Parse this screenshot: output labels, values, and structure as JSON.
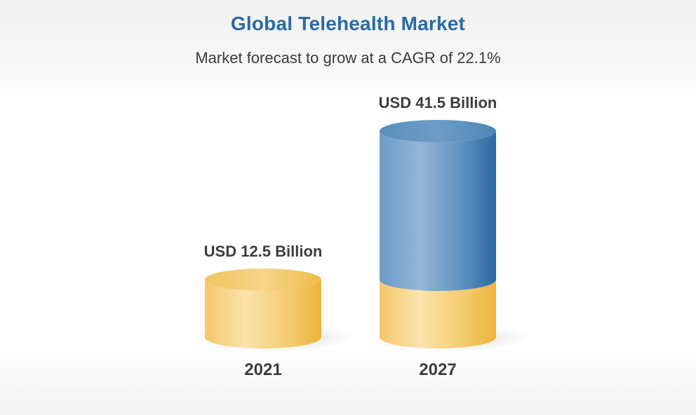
{
  "chart_data": {
    "type": "bar",
    "title": "Global Telehealth Market",
    "subtitle": "Market forecast to grow at a CAGR of 22.1%",
    "categories": [
      "2021",
      "2027"
    ],
    "values": [
      12.5,
      41.5
    ],
    "value_labels": [
      "USD 12.5 Billion",
      "USD 41.5 Billion"
    ],
    "unit": "USD Billion",
    "legend": "none",
    "grid": false
  },
  "colors": {
    "title": "#2a6aa3",
    "gold_light": "#fbe6b0",
    "gold": "#f3c75c",
    "gold_dark": "#eeb338",
    "blue_light": "#93b5d4",
    "blue": "#5e93c0",
    "blue_dark": "#2a6aa3"
  }
}
